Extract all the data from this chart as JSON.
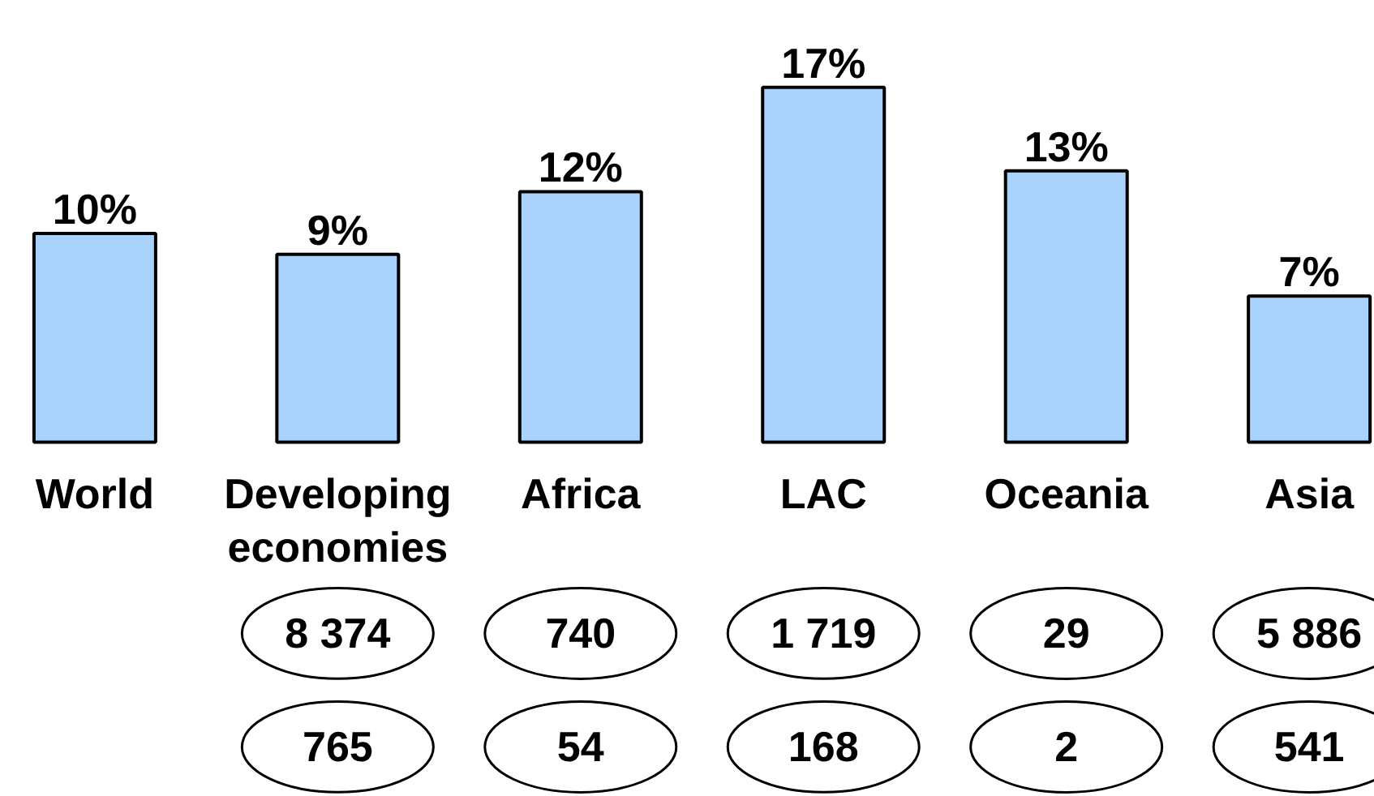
{
  "chart_data": {
    "type": "bar",
    "categories": [
      "World",
      "Developing economies",
      "Africa",
      "LAC",
      "Oceania",
      "Asia"
    ],
    "values": [
      10,
      9,
      12,
      17,
      13,
      7
    ],
    "value_labels": [
      "10%",
      "9%",
      "12%",
      "17%",
      "13%",
      "7%"
    ],
    "color": "#a9d3fd",
    "tick_labels": "x",
    "annotations": [
      "8 374",
      "740",
      "1 719",
      "29",
      "5 886",
      "765",
      "54",
      "168",
      "2",
      "541"
    ]
  }
}
